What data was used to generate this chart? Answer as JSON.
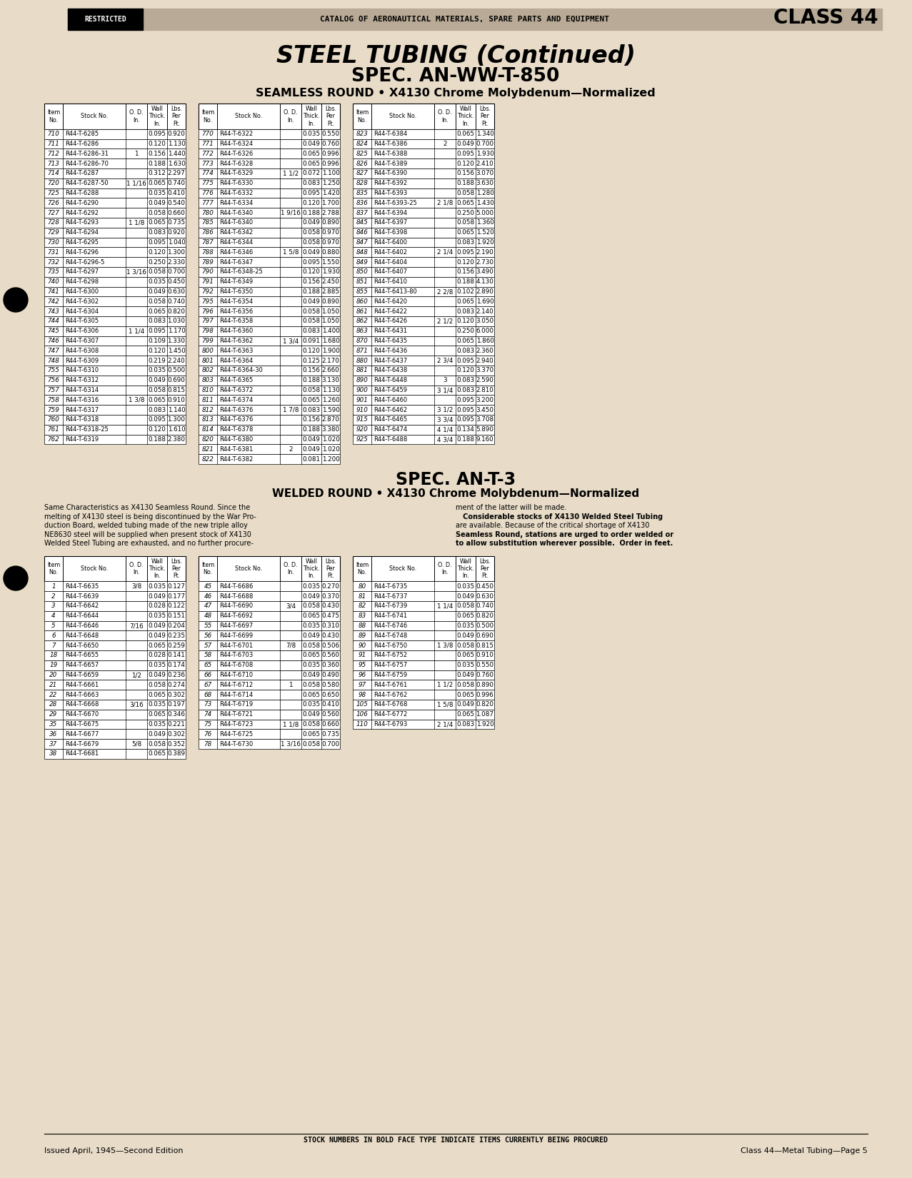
{
  "bg_color": "#e8dcc8",
  "header_bg": "#b0a090",
  "title1": "STEEL TUBING (Continued)",
  "title2": "SPEC. AN-WW-T-850",
  "title3": "SEAMLESS ROUND • X4130 Chrome Molybdenum—Normalized",
  "spec2_title1": "SPEC. AN-T-3",
  "spec2_title2": "WELDED ROUND • X4130 Chrome Molybdenum—Normalized",
  "header_text": "CATALOG OF AERONAUTICAL MATERIALS, SPARE PARTS AND EQUIPMENT",
  "class_text": "CLASS 44",
  "restricted_text": "RESTRICTED",
  "footer1": "STOCK NUMBERS IN BOLD FACE TYPE INDICATE ITEMS CURRENTLY BEING PROCURED",
  "footer2": "Issued April, 1945—Second Edition",
  "footer3": "Class 44—Metal Tubing—Page 5",
  "welded_desc_left": "Same Characteristics as X4130 Seamless Round. Since the\nmelting of X4130 steel is being discontinued by the War Pro-\nduction Board, welded tubing made of the new triple alloy\nNE8630 steel will be supplied when present stock of X4130\nWelded Steel Tubing are exhausted, and no further procure-",
  "welded_desc_right": "ment of the latter will be made.\n   Considerable stocks of X4130 Welded Steel Tubing\nare available. Because of the critical shortage of X4130\nSeamless Round, stations are urged to order welded or\nto allow substitution wherever possible.  Order in feet.",
  "table1_col1": [
    [
      "710",
      "R44-T-6285",
      "",
      "0.095",
      "0.920"
    ],
    [
      "711",
      "R44-T-6286",
      "",
      "0.120",
      "1.130"
    ],
    [
      "712",
      "R44-T-6286-31",
      "1",
      "0.156",
      "1.440"
    ],
    [
      "713",
      "R44-T-6286-70",
      "",
      "0.188",
      "1.630"
    ],
    [
      "714",
      "R44-T-6287",
      "",
      "0.312",
      "2.297"
    ],
    [
      "720",
      "R44-T-6287-50",
      "1 1/16",
      "0.065",
      "0.740"
    ],
    [
      "725",
      "R44-T-6288",
      "",
      "0.035",
      "0.410"
    ],
    [
      "726",
      "R44-T-6290",
      "",
      "0.049",
      "0.540"
    ],
    [
      "727",
      "R44-T-6292",
      "",
      "0.058",
      "0.660"
    ],
    [
      "728",
      "R44-T-6293",
      "1 1/8",
      "0.065",
      "0.735"
    ],
    [
      "729",
      "R44-T-6294",
      "",
      "0.083",
      "0.920"
    ],
    [
      "730",
      "R44-T-6295",
      "",
      "0.095",
      "1.040"
    ],
    [
      "731",
      "R44-T-6296",
      "",
      "0.120",
      "1.300"
    ],
    [
      "732",
      "R44-T-6296-5",
      "",
      "0.250",
      "2.330"
    ],
    [
      "735",
      "R44-T-6297",
      "1 3/16",
      "0.058",
      "0.700"
    ],
    [
      "740",
      "R44-T-6298",
      "",
      "0.035",
      "0.450"
    ],
    [
      "741",
      "R44-T-6300",
      "",
      "0.049",
      "0.630"
    ],
    [
      "742",
      "R44-T-6302",
      "",
      "0.058",
      "0.740"
    ],
    [
      "743",
      "R44-T-6304",
      "",
      "0.065",
      "0.820"
    ],
    [
      "744",
      "R44-T-6305",
      "",
      "0.083",
      "1.030"
    ],
    [
      "745",
      "R44-T-6306",
      "1 1/4",
      "0.095",
      "1.170"
    ],
    [
      "746",
      "R44-T-6307",
      "",
      "0.109",
      "1.330"
    ],
    [
      "747",
      "R44-T-6308",
      "",
      "0.120",
      "1.450"
    ],
    [
      "748",
      "R44-T-6309",
      "",
      "0.219",
      "2.240"
    ],
    [
      "755",
      "R44-T-6310",
      "",
      "0.035",
      "0.500"
    ],
    [
      "756",
      "R44-T-6312",
      "",
      "0.049",
      "0.690"
    ],
    [
      "757",
      "R44-T-6314",
      "",
      "0.058",
      "0.815"
    ],
    [
      "758",
      "R44-T-6316",
      "1 3/8",
      "0.065",
      "0.910"
    ],
    [
      "759",
      "R44-T-6317",
      "",
      "0.083",
      "1.140"
    ],
    [
      "760",
      "R44-T-6318",
      "",
      "0.095",
      "1.300"
    ],
    [
      "761",
      "R44-T-6318-25",
      "",
      "0.120",
      "1.610"
    ],
    [
      "762",
      "R44-T-6319",
      "",
      "0.188",
      "2.380"
    ]
  ],
  "table1_col2": [
    [
      "770",
      "R44-T-6322",
      "",
      "0.035",
      "0.550"
    ],
    [
      "771",
      "R44-T-6324",
      "",
      "0.049",
      "0.760"
    ],
    [
      "772",
      "R44-T-6326",
      "",
      "0.065",
      "0.996"
    ],
    [
      "773",
      "R44-T-6328",
      "",
      "0.065",
      "0.996"
    ],
    [
      "774",
      "R44-T-6329",
      "1 1/2",
      "0.072",
      "1.100"
    ],
    [
      "775",
      "R44-T-6330",
      "",
      "0.083",
      "1.250"
    ],
    [
      "776",
      "R44-T-6332",
      "",
      "0.095",
      "1.420"
    ],
    [
      "777",
      "R44-T-6334",
      "",
      "0.120",
      "1.700"
    ],
    [
      "780",
      "R44-T-6340",
      "1 9/16",
      "0.188",
      "2.788"
    ],
    [
      "785",
      "R44-T-6340",
      "",
      "0.049",
      "0.890"
    ],
    [
      "786",
      "R44-T-6342",
      "",
      "0.058",
      "0.970"
    ],
    [
      "787",
      "R44-T-6344",
      "",
      "0.058",
      "0.970"
    ],
    [
      "788",
      "R44-T-6346",
      "1 5/8",
      "0.049",
      "0.880"
    ],
    [
      "789",
      "R44-T-6347",
      "",
      "0.095",
      "1.550"
    ],
    [
      "790",
      "R44-T-6348-25",
      "",
      "0.120",
      "1.930"
    ],
    [
      "791",
      "R44-T-6349",
      "",
      "0.156",
      "2.450"
    ],
    [
      "792",
      "R44-T-6350",
      "",
      "0.188",
      "2.885"
    ],
    [
      "795",
      "R44-T-6354",
      "",
      "0.049",
      "0.890"
    ],
    [
      "796",
      "R44-T-6356",
      "",
      "0.058",
      "1.050"
    ],
    [
      "797",
      "R44-T-6358",
      "",
      "0.058",
      "1.050"
    ],
    [
      "798",
      "R44-T-6360",
      "",
      "0.083",
      "1.400"
    ],
    [
      "799",
      "R44-T-6362",
      "1 3/4",
      "0.091",
      "1.680"
    ],
    [
      "800",
      "R44-T-6363",
      "",
      "0.120",
      "1.900"
    ],
    [
      "801",
      "R44-T-6364",
      "",
      "0.125",
      "2.170"
    ],
    [
      "802",
      "R44-T-6364-30",
      "",
      "0.156",
      "2.660"
    ],
    [
      "803",
      "R44-T-6365",
      "",
      "0.188",
      "3.130"
    ],
    [
      "810",
      "R44-T-6372",
      "",
      "0.058",
      "1.130"
    ],
    [
      "811",
      "R44-T-6374",
      "",
      "0.065",
      "1.260"
    ],
    [
      "812",
      "R44-T-6376",
      "1 7/8",
      "0.083",
      "1.590"
    ],
    [
      "813",
      "R44-T-6376",
      "",
      "0.156",
      "2.870"
    ],
    [
      "814",
      "R44-T-6378",
      "",
      "0.188",
      "3.380"
    ],
    [
      "820",
      "R44-T-6380",
      "",
      "0.049",
      "1.020"
    ],
    [
      "821",
      "R44-T-6381",
      "2",
      "0.049",
      "1.020"
    ],
    [
      "822",
      "R44-T-6382",
      "",
      "0.081",
      "1.200"
    ]
  ],
  "table1_col3": [
    [
      "823",
      "R44-T-6384",
      "",
      "0.065",
      "1.340"
    ],
    [
      "824",
      "R44-T-6386",
      "2",
      "0.049",
      "0.700"
    ],
    [
      "825",
      "R44-T-6388",
      "",
      "0.095",
      "1.930"
    ],
    [
      "826",
      "R44-T-6389",
      "",
      "0.120",
      "2.410"
    ],
    [
      "827",
      "R44-T-6390",
      "",
      "0.156",
      "3.070"
    ],
    [
      "828",
      "R44-T-6392",
      "",
      "0.188",
      "3.630"
    ],
    [
      "835",
      "R44-T-6393",
      "",
      "0.058",
      "1.280"
    ],
    [
      "836",
      "R44-T-6393-25",
      "2 1/8",
      "0.065",
      "1.430"
    ],
    [
      "837",
      "R44-T-6394",
      "",
      "0.250",
      "5.000"
    ],
    [
      "845",
      "R44-T-6397",
      "",
      "0.058",
      "1.360"
    ],
    [
      "846",
      "R44-T-6398",
      "",
      "0.065",
      "1.520"
    ],
    [
      "847",
      "R44-T-6400",
      "",
      "0.083",
      "1.920"
    ],
    [
      "848",
      "R44-T-6402",
      "2 1/4",
      "0.095",
      "2.190"
    ],
    [
      "849",
      "R44-T-6404",
      "",
      "0.120",
      "2.730"
    ],
    [
      "850",
      "R44-T-6407",
      "",
      "0.156",
      "3.490"
    ],
    [
      "851",
      "R44-T-6410",
      "",
      "0.188",
      "4.130"
    ],
    [
      "855",
      "R44-T-6413-80",
      "2 2/8",
      "0.102",
      "2.890"
    ],
    [
      "860",
      "R44-T-6420",
      "",
      "0.065",
      "1.690"
    ],
    [
      "861",
      "R44-T-6422",
      "",
      "0.083",
      "2.140"
    ],
    [
      "862",
      "R44-T-6426",
      "2 1/2",
      "0.120",
      "3.050"
    ],
    [
      "863",
      "R44-T-6431",
      "",
      "0.250",
      "6.000"
    ],
    [
      "870",
      "R44-T-6435",
      "",
      "0.065",
      "1.860"
    ],
    [
      "871",
      "R44-T-6436",
      "",
      "0.083",
      "2.360"
    ],
    [
      "880",
      "R44-T-6437",
      "2 3/4",
      "0.095",
      "2.940"
    ],
    [
      "881",
      "R44-T-6438",
      "",
      "0.120",
      "3.370"
    ],
    [
      "890",
      "R44-T-6448",
      "3",
      "0.083",
      "2.590"
    ],
    [
      "900",
      "R44-T-6459",
      "3 1/4",
      "0.083",
      "2.810"
    ],
    [
      "901",
      "R44-T-6460",
      "",
      "0.095",
      "3.200"
    ],
    [
      "910",
      "R44-T-6462",
      "3 1/2",
      "0.095",
      "3.450"
    ],
    [
      "915",
      "R44-T-6465",
      "3 3/4",
      "0.095",
      "3.708"
    ],
    [
      "920",
      "R44-T-6474",
      "4 1/4",
      "0.134",
      "5.890"
    ],
    [
      "925",
      "R44-T-6488",
      "4 3/4",
      "0.188",
      "9.160"
    ]
  ],
  "table2_col1": [
    [
      "1",
      "R44-T-6635",
      "3/8",
      "0.035",
      "0.127"
    ],
    [
      "2",
      "R44-T-6639",
      "",
      "0.049",
      "0.177"
    ],
    [
      "3",
      "R44-T-6642",
      "",
      "0.028",
      "0.122"
    ],
    [
      "4",
      "R44-T-6644",
      "",
      "0.035",
      "0.151"
    ],
    [
      "5",
      "R44-T-6646",
      "7/16",
      "0.049",
      "0.204"
    ],
    [
      "6",
      "R44-T-6648",
      "",
      "0.049",
      "0.235"
    ],
    [
      "7",
      "R44-T-6650",
      "",
      "0.065",
      "0.259"
    ],
    [
      "18",
      "R44-T-6655",
      "",
      "0.028",
      "0.141"
    ],
    [
      "19",
      "R44-T-6657",
      "",
      "0.035",
      "0.174"
    ],
    [
      "20",
      "R44-T-6659",
      "1/2",
      "0.049",
      "0.236"
    ],
    [
      "21",
      "R44-T-6661",
      "",
      "0.058",
      "0.274"
    ],
    [
      "22",
      "R44-T-6663",
      "",
      "0.065",
      "0.302"
    ],
    [
      "28",
      "R44-T-6668",
      "3/16",
      "0.035",
      "0.197"
    ],
    [
      "29",
      "R44-T-6670",
      "",
      "0.065",
      "0.346"
    ],
    [
      "35",
      "R44-T-6675",
      "",
      "0.035",
      "0.221"
    ],
    [
      "36",
      "R44-T-6677",
      "",
      "0.049",
      "0.302"
    ],
    [
      "37",
      "R44-T-6679",
      "5/8",
      "0.058",
      "0.352"
    ],
    [
      "38",
      "R44-T-6681",
      "",
      "0.065",
      "0.389"
    ]
  ],
  "table2_col2": [
    [
      "45",
      "R44-T-6686",
      "",
      "0.035",
      "0.270"
    ],
    [
      "46",
      "R44-T-6688",
      "",
      "0.049",
      "0.370"
    ],
    [
      "47",
      "R44-T-6690",
      "3/4",
      "0.058",
      "0.430"
    ],
    [
      "48",
      "R44-T-6692",
      "",
      "0.065",
      "0.475"
    ],
    [
      "55",
      "R44-T-6697",
      "",
      "0.035",
      "0.310"
    ],
    [
      "56",
      "R44-T-6699",
      "",
      "0.049",
      "0.430"
    ],
    [
      "57",
      "R44-T-6701",
      "7/8",
      "0.058",
      "0.506"
    ],
    [
      "58",
      "R44-T-6703",
      "",
      "0.065",
      "0.560"
    ],
    [
      "65",
      "R44-T-6708",
      "",
      "0.035",
      "0.360"
    ],
    [
      "66",
      "R44-T-6710",
      "",
      "0.049",
      "0.490"
    ],
    [
      "67",
      "R44-T-6712",
      "1",
      "0.058",
      "0.580"
    ],
    [
      "68",
      "R44-T-6714",
      "",
      "0.065",
      "0.650"
    ],
    [
      "73",
      "R44-T-6719",
      "",
      "0.035",
      "0.410"
    ],
    [
      "74",
      "R44-T-6721",
      "",
      "0.049",
      "0.560"
    ],
    [
      "75",
      "R44-T-6723",
      "1 1/8",
      "0.058",
      "0.660"
    ],
    [
      "76",
      "R44-T-6725",
      "",
      "0.065",
      "0.735"
    ],
    [
      "78",
      "R44-T-6730",
      "1 3/16",
      "0.058",
      "0.700"
    ]
  ],
  "table2_col3": [
    [
      "80",
      "R44-T-6735",
      "",
      "0.035",
      "0.450"
    ],
    [
      "81",
      "R44-T-6737",
      "",
      "0.049",
      "0.630"
    ],
    [
      "82",
      "R44-T-6739",
      "1 1/4",
      "0.058",
      "0.740"
    ],
    [
      "83",
      "R44-T-6741",
      "",
      "0.065",
      "0.820"
    ],
    [
      "88",
      "R44-T-6746",
      "",
      "0.035",
      "0.500"
    ],
    [
      "89",
      "R44-T-6748",
      "",
      "0.049",
      "0.690"
    ],
    [
      "90",
      "R44-T-6750",
      "1 3/8",
      "0.058",
      "0.815"
    ],
    [
      "91",
      "R44-T-6752",
      "",
      "0.065",
      "0.910"
    ],
    [
      "95",
      "R44-T-6757",
      "",
      "0.035",
      "0.550"
    ],
    [
      "96",
      "R44-T-6759",
      "",
      "0.049",
      "0.760"
    ],
    [
      "97",
      "R44-T-6761",
      "1 1/2",
      "0.058",
      "0.890"
    ],
    [
      "98",
      "R44-T-6762",
      "",
      "0.065",
      "0.996"
    ],
    [
      "105",
      "R44-T-6768",
      "1 5/8",
      "0.049",
      "0.820"
    ],
    [
      "106",
      "R44-T-6772",
      "",
      "0.065",
      "1.087"
    ],
    [
      "110",
      "R44-T-6793",
      "2 1/4",
      "0.083",
      "1.920"
    ]
  ]
}
